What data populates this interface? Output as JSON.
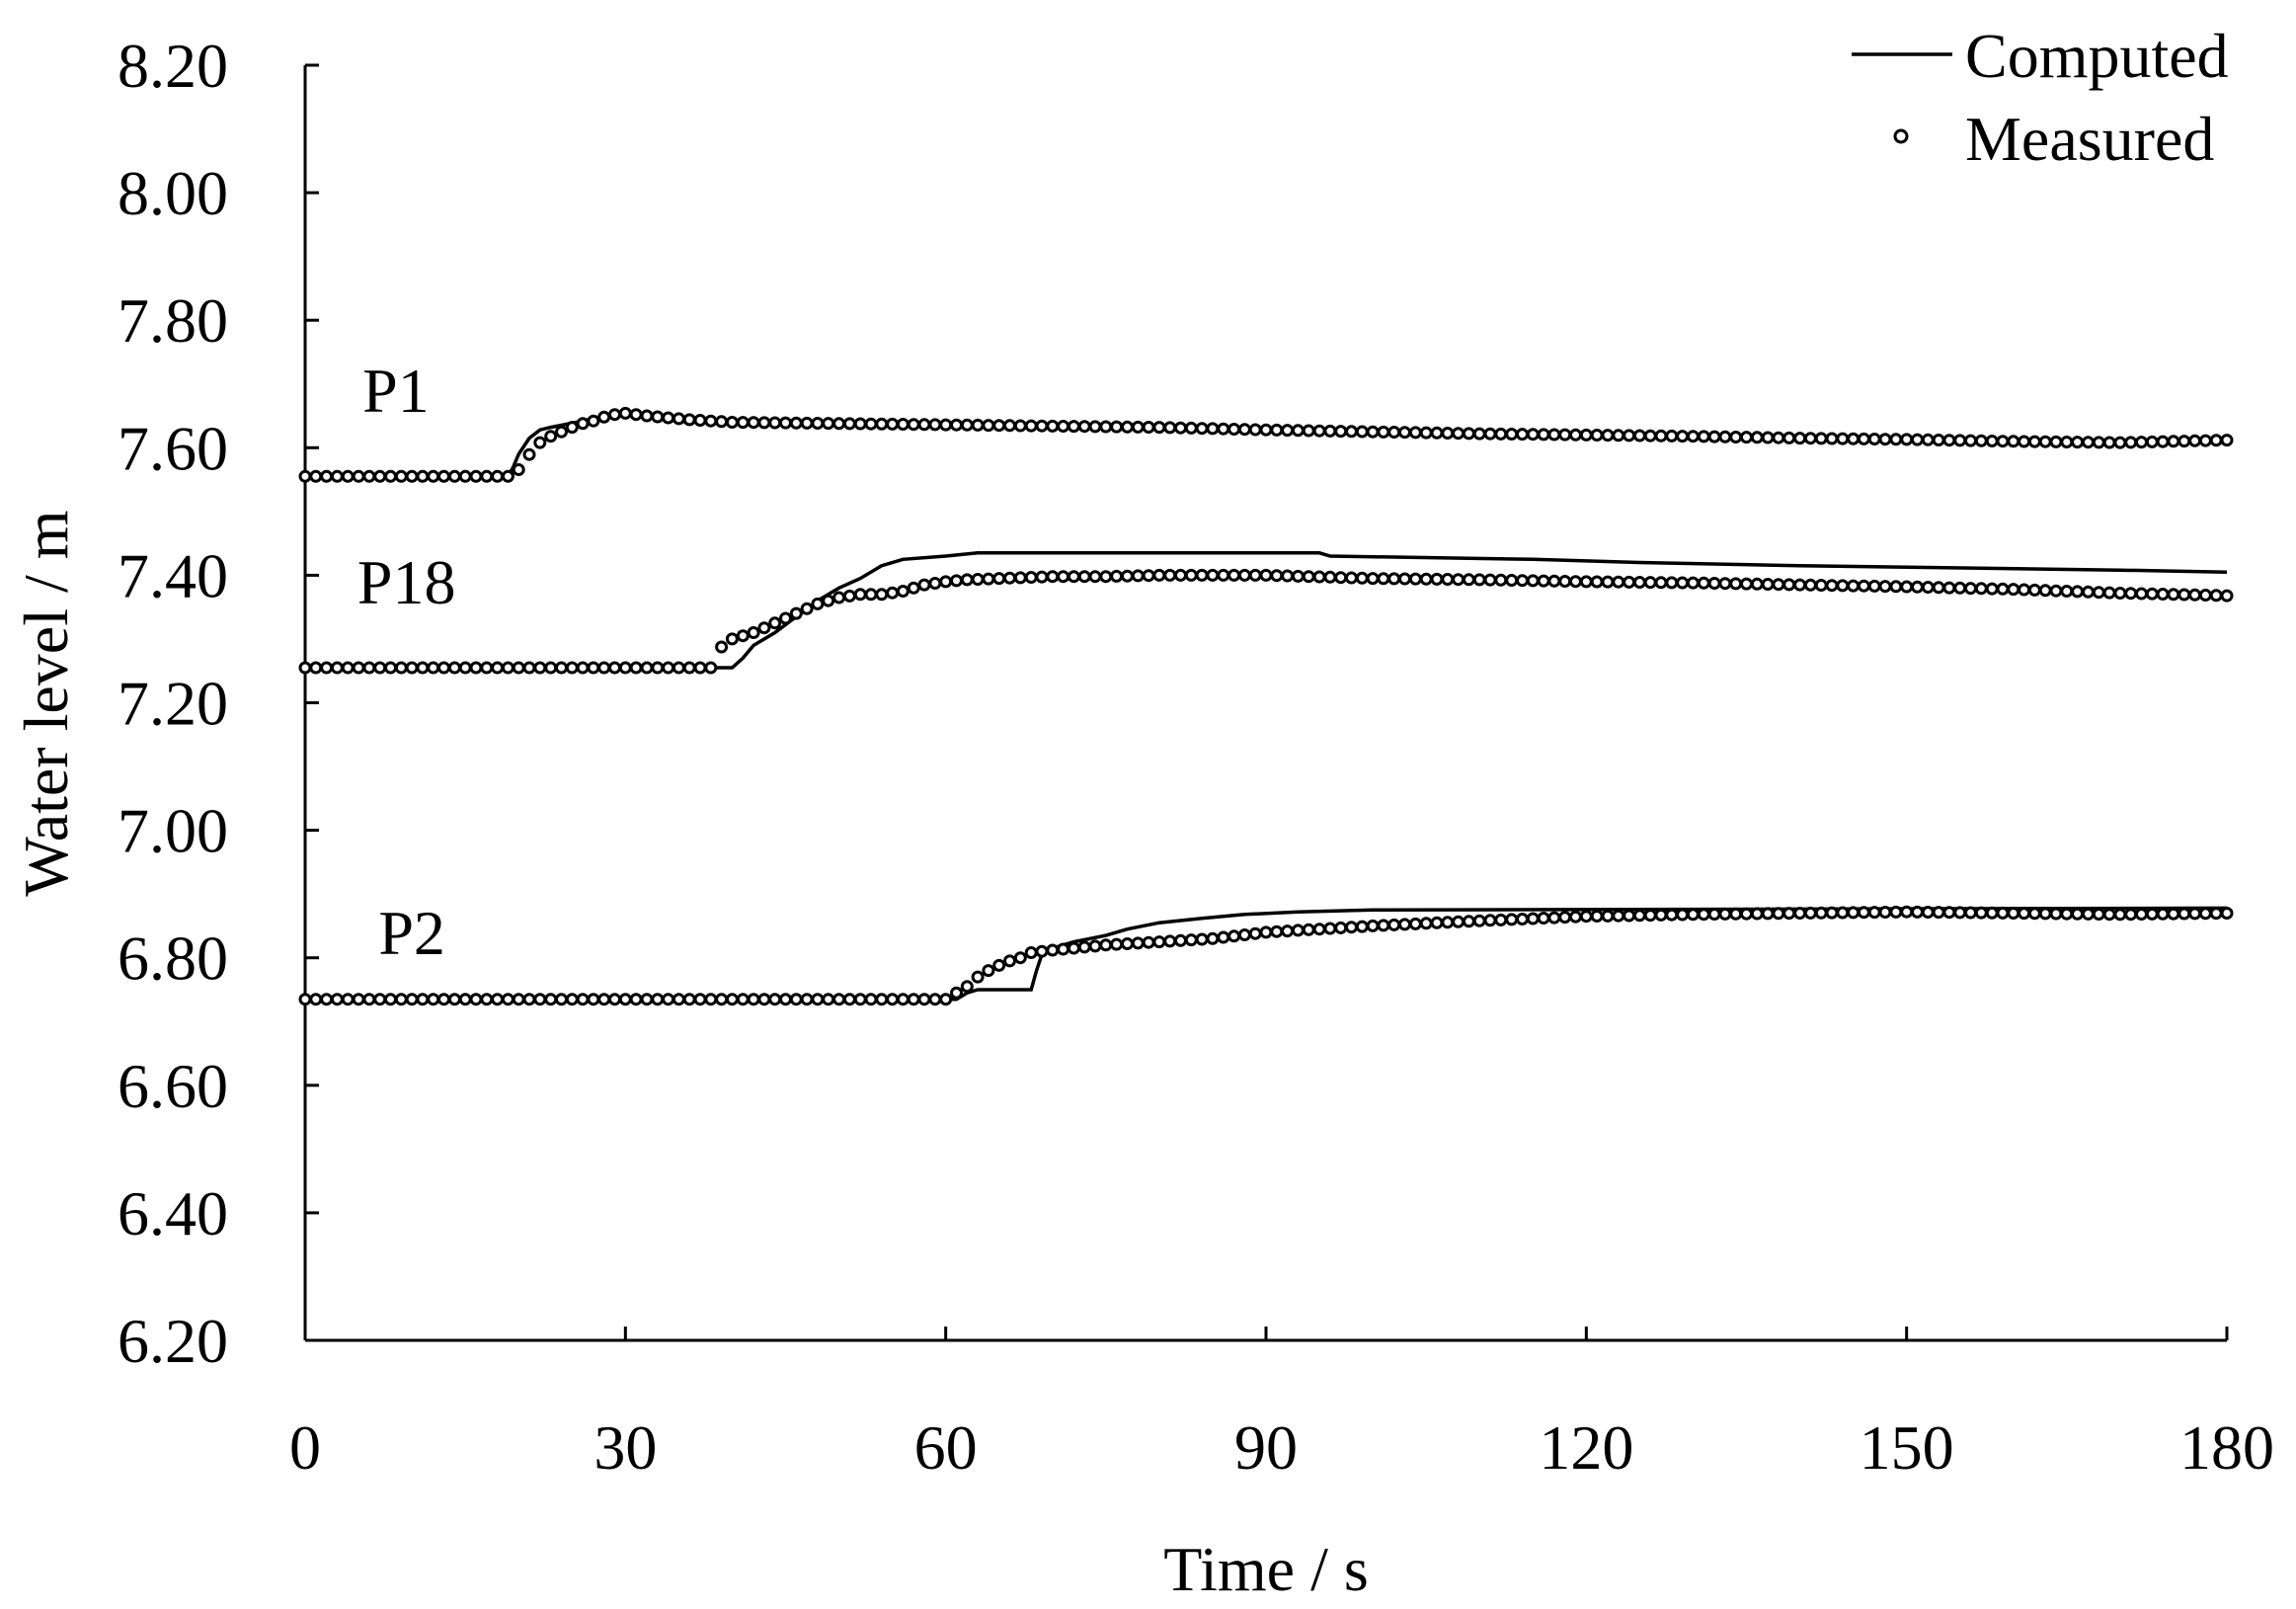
{
  "chart_data": {
    "type": "line",
    "title": "",
    "xlabel": "Time / s",
    "ylabel": "Water level / m",
    "xlim": [
      0,
      180
    ],
    "ylim": [
      6.2,
      8.2
    ],
    "x_ticks": [
      "0",
      "30",
      "60",
      "90",
      "120",
      "150",
      "180"
    ],
    "y_ticks": [
      "6.20",
      "6.40",
      "6.60",
      "6.80",
      "7.00",
      "7.20",
      "7.40",
      "7.60",
      "7.80",
      "8.00",
      "8.20"
    ],
    "legend": {
      "position": "top-right",
      "entries": [
        "Computed",
        "Measured"
      ]
    },
    "grid": false,
    "gauges": [
      {
        "label": "P1",
        "label_at": [
          8.5,
          7.69
        ],
        "computed": [
          [
            0,
            7.555
          ],
          [
            19,
            7.555
          ],
          [
            19.5,
            7.57
          ],
          [
            20,
            7.59
          ],
          [
            21,
            7.615
          ],
          [
            22,
            7.628
          ],
          [
            23,
            7.632
          ],
          [
            26,
            7.642
          ],
          [
            28,
            7.65
          ],
          [
            31,
            7.652
          ],
          [
            33,
            7.645
          ],
          [
            36,
            7.64
          ],
          [
            60,
            7.638
          ],
          [
            66,
            7.632
          ],
          [
            100,
            7.625
          ],
          [
            130,
            7.62
          ],
          [
            150,
            7.615
          ],
          [
            170,
            7.61
          ],
          [
            180,
            7.608
          ]
        ],
        "measured": [
          [
            0,
            7.555
          ],
          [
            19,
            7.555
          ],
          [
            19.7,
            7.56
          ],
          [
            20.5,
            7.575
          ],
          [
            21.2,
            7.595
          ],
          [
            22,
            7.608
          ],
          [
            23,
            7.618
          ],
          [
            24,
            7.625
          ],
          [
            25,
            7.632
          ],
          [
            26,
            7.638
          ],
          [
            27,
            7.642
          ],
          [
            28,
            7.648
          ],
          [
            29,
            7.652
          ],
          [
            30,
            7.654
          ],
          [
            31,
            7.652
          ],
          [
            32,
            7.65
          ],
          [
            34,
            7.647
          ],
          [
            36,
            7.644
          ],
          [
            40,
            7.64
          ],
          [
            50,
            7.638
          ],
          [
            60,
            7.636
          ],
          [
            70,
            7.634
          ],
          [
            80,
            7.632
          ],
          [
            90,
            7.628
          ],
          [
            100,
            7.625
          ],
          [
            110,
            7.622
          ],
          [
            120,
            7.62
          ],
          [
            130,
            7.618
          ],
          [
            140,
            7.615
          ],
          [
            150,
            7.613
          ],
          [
            160,
            7.61
          ],
          [
            170,
            7.608
          ],
          [
            180,
            7.612
          ]
        ]
      },
      {
        "label": "P18",
        "label_at": [
          9.5,
          7.39
        ],
        "computed": [
          [
            0,
            7.255
          ],
          [
            40,
            7.255
          ],
          [
            41,
            7.27
          ],
          [
            42,
            7.29
          ],
          [
            44,
            7.31
          ],
          [
            46,
            7.335
          ],
          [
            48,
            7.36
          ],
          [
            50,
            7.38
          ],
          [
            52,
            7.395
          ],
          [
            54,
            7.415
          ],
          [
            56,
            7.425
          ],
          [
            60,
            7.43
          ],
          [
            63,
            7.435
          ],
          [
            95,
            7.435
          ],
          [
            96,
            7.43
          ],
          [
            115,
            7.425
          ],
          [
            125,
            7.42
          ],
          [
            140,
            7.415
          ],
          [
            170,
            7.408
          ],
          [
            180,
            7.405
          ]
        ],
        "measured": [
          [
            0,
            7.255
          ],
          [
            38,
            7.255
          ],
          [
            38.8,
            7.285
          ],
          [
            40,
            7.3
          ],
          [
            42,
            7.31
          ],
          [
            44,
            7.325
          ],
          [
            46,
            7.34
          ],
          [
            48,
            7.355
          ],
          [
            50,
            7.365
          ],
          [
            52,
            7.37
          ],
          [
            54,
            7.37
          ],
          [
            56,
            7.375
          ],
          [
            58,
            7.385
          ],
          [
            60,
            7.39
          ],
          [
            62,
            7.393
          ],
          [
            65,
            7.395
          ],
          [
            70,
            7.398
          ],
          [
            75,
            7.398
          ],
          [
            80,
            7.4
          ],
          [
            90,
            7.4
          ],
          [
            100,
            7.395
          ],
          [
            110,
            7.393
          ],
          [
            120,
            7.39
          ],
          [
            130,
            7.388
          ],
          [
            140,
            7.385
          ],
          [
            150,
            7.382
          ],
          [
            160,
            7.378
          ],
          [
            170,
            7.372
          ],
          [
            180,
            7.368
          ]
        ]
      },
      {
        "label": "P2",
        "label_at": [
          10,
          6.84
        ],
        "computed": [
          [
            0,
            6.735
          ],
          [
            61,
            6.735
          ],
          [
            62,
            6.745
          ],
          [
            63,
            6.75
          ],
          [
            68,
            6.75
          ],
          [
            68.5,
            6.78
          ],
          [
            69,
            6.805
          ],
          [
            70,
            6.815
          ],
          [
            72,
            6.825
          ],
          [
            75,
            6.835
          ],
          [
            77,
            6.845
          ],
          [
            80,
            6.855
          ],
          [
            84,
            6.862
          ],
          [
            88,
            6.868
          ],
          [
            93,
            6.872
          ],
          [
            100,
            6.875
          ],
          [
            180,
            6.878
          ]
        ],
        "measured": [
          [
            0,
            6.735
          ],
          [
            60,
            6.735
          ],
          [
            61,
            6.745
          ],
          [
            62,
            6.755
          ],
          [
            63,
            6.77
          ],
          [
            64,
            6.78
          ],
          [
            65,
            6.788
          ],
          [
            66,
            6.795
          ],
          [
            67,
            6.8
          ],
          [
            68,
            6.808
          ],
          [
            69,
            6.81
          ],
          [
            70,
            6.812
          ],
          [
            72,
            6.815
          ],
          [
            75,
            6.82
          ],
          [
            80,
            6.825
          ],
          [
            85,
            6.83
          ],
          [
            90,
            6.84
          ],
          [
            95,
            6.845
          ],
          [
            100,
            6.85
          ],
          [
            110,
            6.858
          ],
          [
            120,
            6.865
          ],
          [
            130,
            6.868
          ],
          [
            140,
            6.87
          ],
          [
            150,
            6.872
          ],
          [
            160,
            6.87
          ],
          [
            170,
            6.868
          ],
          [
            180,
            6.87
          ]
        ]
      }
    ]
  }
}
